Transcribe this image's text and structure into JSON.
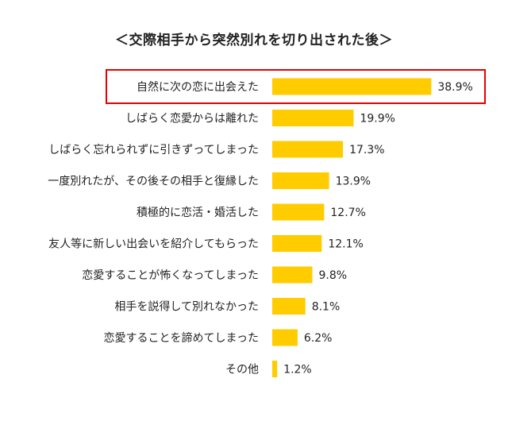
{
  "chart_data": {
    "type": "bar",
    "orientation": "horizontal",
    "title": "＜交際相手から突然別れを切り出された後＞",
    "categories": [
      "自然に次の恋に出会えた",
      "しばらく恋愛からは離れた",
      "しばらく忘れられずに引きずってしまった",
      "一度別れたが、その後その相手と復縁した",
      "積極的に恋活・婚活した",
      "友人等に新しい出会いを紹介してもらった",
      "恋愛することが怖くなってしまった",
      "相手を説得して別れなかった",
      "恋愛することを諦めてしまった",
      "その他"
    ],
    "values": [
      38.9,
      19.9,
      17.3,
      13.9,
      12.7,
      12.1,
      9.8,
      8.1,
      6.2,
      1.2
    ],
    "value_labels": [
      "38.9%",
      "19.9%",
      "17.3%",
      "13.9%",
      "12.7%",
      "12.1%",
      "9.8%",
      "8.1%",
      "6.2%",
      "1.2%"
    ],
    "xlim": [
      0,
      40
    ],
    "grid": false,
    "highlighted_category": "自然に次の恋に出会えた",
    "bar_color": "#ffcc00",
    "highlight_color": "#e60000"
  }
}
